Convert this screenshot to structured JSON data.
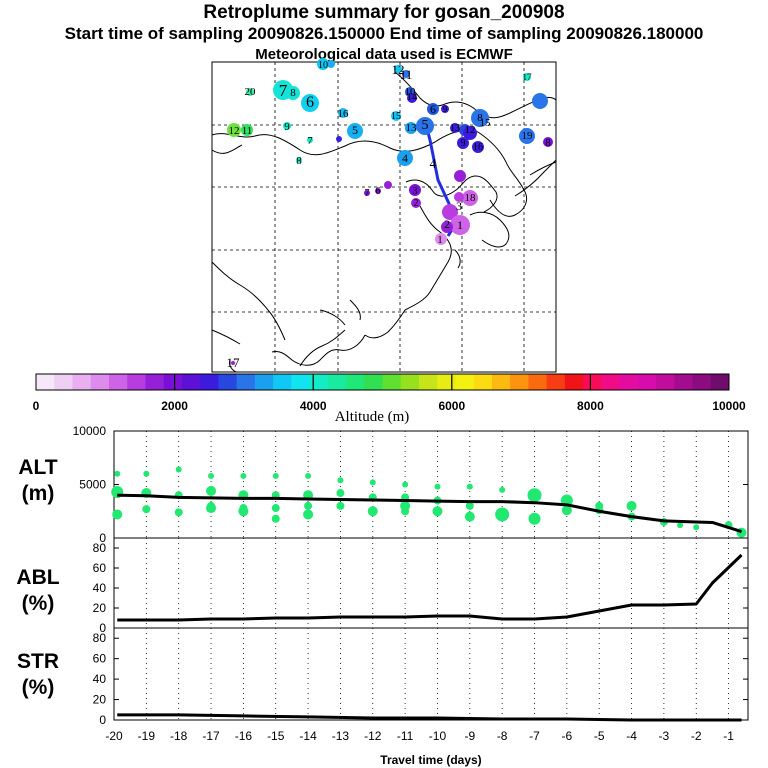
{
  "header": {
    "title": "Retroplume summary for gosan_200908",
    "subtitle": "Start time of sampling 20090826.150000     End time of sampling 20090826.180000",
    "meteo": "Meteorological data used is ECMWF"
  },
  "colorbar": {
    "label": "Altitude (m)",
    "min": 0,
    "max": 10000,
    "tick_labels": [
      "0",
      "2000",
      "4000",
      "6000",
      "8000",
      "10000"
    ],
    "colors": [
      "#f6e8f8",
      "#f0cff5",
      "#e8b0f0",
      "#dd8cec",
      "#cf63e8",
      "#b93ce0",
      "#9620d8",
      "#7a10d5",
      "#5c10d8",
      "#3c1cdc",
      "#2846e0",
      "#2874e8",
      "#1aa0ef",
      "#10c8f4",
      "#10e4f0",
      "#14ecc8",
      "#18eaa0",
      "#20e878",
      "#30e050",
      "#60e030",
      "#96e020",
      "#c8e418",
      "#e6ec14",
      "#f4f010",
      "#fcdc10",
      "#fcba10",
      "#fc9410",
      "#fc6a10",
      "#f83c14",
      "#f01418",
      "#f80c58",
      "#f00c86",
      "#e40ca0",
      "#d60cac",
      "#c40c9c",
      "#a40c90",
      "#8a0c7e",
      "#700c6c"
    ]
  },
  "map": {
    "labels": [
      {
        "t": "20",
        "c": "#000"
      },
      {
        "t": "7",
        "c": "#000"
      },
      {
        "t": "8",
        "c": "#000"
      },
      {
        "t": "6",
        "c": "#000"
      },
      {
        "t": "16",
        "c": "#000"
      },
      {
        "t": "12",
        "c": "#000"
      },
      {
        "t": "11",
        "c": "#000"
      },
      {
        "t": "9",
        "c": "#000"
      },
      {
        "t": "7",
        "c": "#000"
      },
      {
        "t": "8",
        "c": "#000"
      },
      {
        "t": "5",
        "c": "#000"
      },
      {
        "t": "15",
        "c": "#000"
      },
      {
        "t": "13",
        "c": "#000"
      },
      {
        "t": "5",
        "c": "#000"
      },
      {
        "t": "6",
        "c": "#000"
      },
      {
        "t": "4",
        "c": "#000"
      },
      {
        "t": "7",
        "c": "#000"
      },
      {
        "t": "6",
        "c": "#000"
      },
      {
        "t": "3",
        "c": "#000"
      },
      {
        "t": "2",
        "c": "#000"
      },
      {
        "t": "1",
        "c": "#000"
      },
      {
        "t": "17",
        "c": "#000"
      },
      {
        "t": "10",
        "c": "#000"
      },
      {
        "t": "12",
        "c": "#000"
      },
      {
        "t": "11",
        "c": "#000"
      },
      {
        "t": "10",
        "c": "#000"
      },
      {
        "t": "14",
        "c": "#000"
      },
      {
        "t": "9",
        "c": "#000"
      },
      {
        "t": "13",
        "c": "#000"
      },
      {
        "t": "12",
        "c": "#000"
      },
      {
        "t": "8",
        "c": "#000"
      },
      {
        "t": "16",
        "c": "#000"
      },
      {
        "t": "18",
        "c": "#000"
      },
      {
        "t": "3",
        "c": "#000"
      },
      {
        "t": "2",
        "c": "#000"
      },
      {
        "t": "1",
        "c": "#000"
      },
      {
        "t": "4",
        "c": "#000"
      },
      {
        "t": "9",
        "c": "#000"
      },
      {
        "t": "15",
        "c": "#000"
      },
      {
        "t": "19",
        "c": "#000"
      },
      {
        "t": "8",
        "c": "#000"
      },
      {
        "t": "17",
        "c": "#000"
      }
    ]
  },
  "chart_data": [
    {
      "type": "line",
      "title": "ALT (m)",
      "ylabel": "ALT (m)",
      "ylim": [
        0,
        10000
      ],
      "yticks": [
        0,
        5000,
        10000
      ],
      "x": [
        -19.9,
        -19,
        -18,
        -17,
        -16,
        -15,
        -14,
        -13,
        -12,
        -11,
        -10,
        -9,
        -8,
        -7,
        -6,
        -5,
        -4,
        -3,
        -2,
        -1.5,
        -0.6
      ],
      "values": [
        4000,
        3950,
        3800,
        3750,
        3700,
        3700,
        3650,
        3600,
        3550,
        3500,
        3450,
        3400,
        3400,
        3300,
        3100,
        2500,
        2000,
        1600,
        1500,
        1450,
        600
      ],
      "scatter_x": [
        -19.9,
        -19.9,
        -19.9,
        -19,
        -19,
        -19,
        -18,
        -18,
        -18,
        -17,
        -17,
        -17,
        -17,
        -16,
        -16,
        -16,
        -16,
        -15,
        -15,
        -15,
        -15,
        -14,
        -14,
        -14,
        -14,
        -13,
        -13,
        -13,
        -12,
        -12,
        -12,
        -11,
        -11,
        -11,
        -11,
        -10,
        -10,
        -10,
        -9,
        -9,
        -9,
        -8,
        -8,
        -7,
        -7,
        -6,
        -6,
        -5,
        -5,
        -4,
        -4,
        -3,
        -2.5,
        -2,
        -1,
        -0.6
      ],
      "scatter_y": [
        6000,
        4300,
        2200,
        6000,
        4200,
        2700,
        6400,
        4000,
        2400,
        5800,
        4400,
        3000,
        2800,
        5800,
        4000,
        2800,
        2500,
        5800,
        4000,
        2800,
        1800,
        5800,
        4000,
        3000,
        2200,
        5400,
        4200,
        3000,
        5200,
        3800,
        2500,
        5000,
        3800,
        3000,
        2500,
        4800,
        3500,
        2500,
        4800,
        3000,
        2000,
        4500,
        2200,
        4000,
        1800,
        3500,
        2600,
        2600,
        3000,
        2000,
        3000,
        1500,
        1200,
        1000,
        1200,
        500
      ],
      "scatter_size": [
        3,
        6,
        5,
        3,
        5,
        4,
        3,
        4,
        4,
        3,
        5,
        4,
        5,
        3,
        5,
        4,
        5,
        3,
        4,
        4,
        4,
        3,
        5,
        4,
        5,
        3,
        4,
        4,
        3,
        4,
        5,
        3,
        4,
        5,
        4,
        3,
        4,
        5,
        3,
        4,
        5,
        3,
        7,
        7,
        6,
        6,
        5,
        4,
        4,
        4,
        5,
        4,
        3,
        3,
        4,
        5
      ],
      "xlim": [
        -20,
        -0.4
      ]
    },
    {
      "type": "line",
      "title": "ABL (%)",
      "ylabel": "ABL (%)",
      "ylim": [
        0,
        90
      ],
      "yticks": [
        0,
        20,
        40,
        60,
        80
      ],
      "x": [
        -19.9,
        -19,
        -18,
        -17,
        -16,
        -15,
        -14,
        -13,
        -12,
        -11,
        -10,
        -9,
        -8,
        -7,
        -6,
        -5,
        -4,
        -3,
        -2,
        -1.5,
        -0.6
      ],
      "values": [
        8,
        8,
        8,
        9,
        9,
        10,
        10,
        11,
        11,
        11,
        12,
        12,
        9,
        9,
        11,
        17,
        23,
        23,
        24,
        45,
        73
      ],
      "xlim": [
        -20,
        -0.4
      ]
    },
    {
      "type": "line",
      "title": "STR (%)",
      "ylabel": "STR (%)",
      "ylim": [
        0,
        90
      ],
      "yticks": [
        0,
        20,
        40,
        60,
        80
      ],
      "xlabel": "Travel time (days)",
      "xticks": [
        -20,
        -19,
        -18,
        -17,
        -16,
        -15,
        -14,
        -13,
        -12,
        -11,
        -10,
        -9,
        -8,
        -7,
        -6,
        -5,
        -4,
        -3,
        -2,
        -1
      ],
      "xtick_labels": [
        "-20",
        "-19",
        "-18",
        "-17",
        "-16",
        "-15",
        "-14",
        "-13",
        "-12",
        "-11",
        "-10",
        "-9",
        "-8",
        "-7",
        "-6",
        "-5",
        "-4",
        "-3",
        "-2",
        "-1"
      ],
      "x": [
        -19.9,
        -18,
        -16,
        -14,
        -12,
        -10,
        -8,
        -6,
        -4,
        -2,
        -0.6
      ],
      "values": [
        5,
        5,
        4,
        3,
        2,
        2,
        1,
        1,
        0,
        0,
        0
      ],
      "xlim": [
        -20,
        -0.4
      ]
    }
  ]
}
